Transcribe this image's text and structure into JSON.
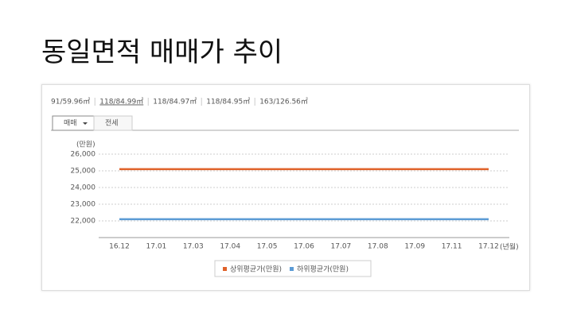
{
  "title": "동일면적 매매가 추이",
  "areas": [
    "91/59.96㎡",
    "118/84.99㎡",
    "118/84.97㎡",
    "118/84.95㎡",
    "163/126.56㎡"
  ],
  "tabs": [
    "매매",
    "전세"
  ],
  "chart_data": {
    "type": "line",
    "y_unit": "(만원)",
    "x_unit": "(년월)",
    "categories": [
      "16.12",
      "17.01",
      "17.03",
      "17.04",
      "17.05",
      "17.06",
      "17.07",
      "17.08",
      "17.09",
      "17.11",
      "17.12"
    ],
    "series": [
      {
        "name": "상위평균가(만원)",
        "color": "#e0622a",
        "values": [
          25100,
          25100,
          25100,
          25100,
          25100,
          25100,
          25100,
          25100,
          25100,
          25100,
          25100
        ]
      },
      {
        "name": "하위평균가(만원)",
        "color": "#5b9bd5",
        "values": [
          22100,
          22100,
          22100,
          22100,
          22100,
          22100,
          22100,
          22100,
          22100,
          22100,
          22100
        ]
      }
    ],
    "ylim": [
      21000,
      26000
    ],
    "yticks": [
      {
        "value": 22000,
        "label": "22,000"
      },
      {
        "value": 23000,
        "label": "23,000"
      },
      {
        "value": 24000,
        "label": "24,000"
      },
      {
        "value": 25000,
        "label": "25,000"
      },
      {
        "value": 26000,
        "label": "26,000"
      }
    ],
    "grid": true
  }
}
